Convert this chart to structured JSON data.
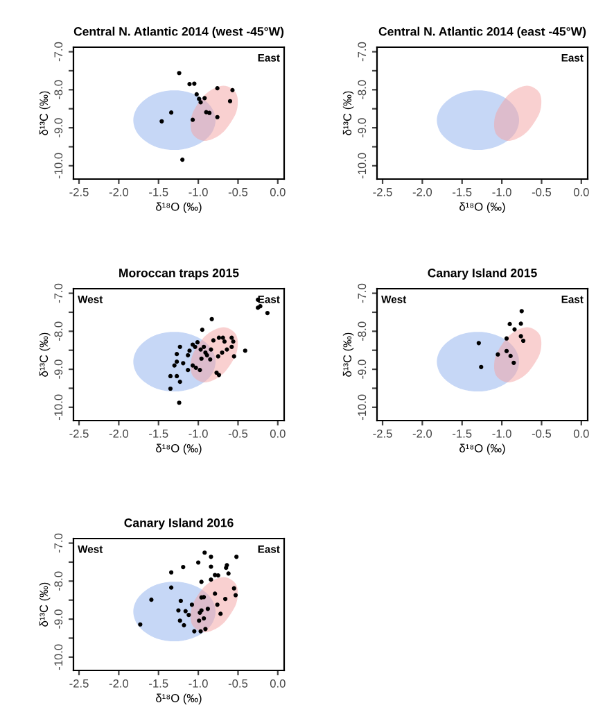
{
  "chart_data": [
    {
      "type": "scatter",
      "title": "Central N. Atlantic 2014 (west -45°W)",
      "xlabel": "δ¹⁸O (‰)",
      "ylabel": "δ¹³C (‰)",
      "xlim": [
        -2.57,
        0.08
      ],
      "ylim": [
        -10.35,
        -6.88
      ],
      "xticks": [
        {
          "value": -2.5,
          "label": "-2.5"
        },
        {
          "value": -2.0,
          "label": "-2.0"
        },
        {
          "value": -1.5,
          "label": "-1.5"
        },
        {
          "value": -1.0,
          "label": "-1.0"
        },
        {
          "value": -0.5,
          "label": "-0.5"
        },
        {
          "value": 0,
          "label": "0.0"
        }
      ],
      "yticks": [
        {
          "value": -10,
          "label": "-10.0"
        },
        {
          "value": -9.5,
          "label": null
        },
        {
          "value": -9,
          "label": "-9.0"
        },
        {
          "value": -8.5,
          "label": null
        },
        {
          "value": -8,
          "label": "-8.0"
        },
        {
          "value": -7.5,
          "label": null
        },
        {
          "value": -7,
          "label": "-7.0"
        }
      ],
      "grid": false,
      "annotations": [
        "East"
      ],
      "series": [
        {
          "type": "area",
          "color": "#8fb0ee",
          "x": [
            -0.79,
            -0.83,
            -0.94,
            -1.11,
            -1.3,
            -1.5,
            -1.66,
            -1.77,
            -1.81,
            -1.77,
            -1.66,
            -1.5,
            -1.3,
            -1.11,
            -0.94,
            -0.83
          ],
          "values": [
            -8.8,
            -8.51,
            -8.26,
            -8.09,
            -8.03,
            -8.09,
            -8.26,
            -8.51,
            -8.8,
            -9.1,
            -9.34,
            -9.51,
            -9.57,
            -9.51,
            -9.34,
            -9.1
          ]
        },
        {
          "type": "area",
          "color": "#f4a3a3",
          "x": [
            -0.51,
            -0.53,
            -0.6,
            -0.69,
            -0.8,
            -0.91,
            -1.0,
            -1.07,
            -1.09,
            -1.07,
            -1.0,
            -0.91,
            -0.8,
            -0.69,
            -0.6,
            -0.53
          ],
          "values": [
            -8.32,
            -8.1,
            -7.96,
            -7.91,
            -7.98,
            -8.14,
            -8.38,
            -8.65,
            -8.92,
            -9.14,
            -9.28,
            -9.33,
            -9.26,
            -9.1,
            -8.86,
            -8.59
          ]
        },
        {
          "marker": "circle",
          "color": "#000000",
          "x": [
            -1.24,
            -1.11,
            -1.05,
            -1.02,
            -0.99,
            -0.92,
            -0.97,
            -0.76,
            -0.57,
            -0.6,
            -0.9,
            -0.86,
            -0.76,
            -1.07,
            -1.34,
            -1.46,
            -1.2
          ],
          "values": [
            -7.56,
            -7.85,
            -7.84,
            -8.12,
            -8.24,
            -8.22,
            -8.33,
            -7.96,
            -8.01,
            -8.3,
            -8.59,
            -8.61,
            -8.72,
            -8.79,
            -8.6,
            -8.83,
            -9.84
          ]
        }
      ]
    },
    {
      "type": "area",
      "title": "Central N. Atlantic 2014 (east -45°W)",
      "xlabel": "δ¹⁸O (‰)",
      "ylabel": "δ¹³C (‰)",
      "xlim": [
        -2.57,
        0.08
      ],
      "ylim": [
        -10.35,
        -6.88
      ],
      "xticks": [
        {
          "value": -2.5,
          "label": "-2.5"
        },
        {
          "value": -2.0,
          "label": "-2.0"
        },
        {
          "value": -1.5,
          "label": "-1.5"
        },
        {
          "value": -1.0,
          "label": "-1.0"
        },
        {
          "value": -0.5,
          "label": "-0.5"
        },
        {
          "value": 0,
          "label": "0.0"
        }
      ],
      "yticks": [
        {
          "value": -10,
          "label": "-10.0"
        },
        {
          "value": -9.5,
          "label": null
        },
        {
          "value": -9,
          "label": "-9.0"
        },
        {
          "value": -8.5,
          "label": null
        },
        {
          "value": -8,
          "label": "-8.0"
        },
        {
          "value": -7.5,
          "label": null
        },
        {
          "value": -7,
          "label": "-7.0"
        }
      ],
      "grid": false,
      "annotations": [
        "East"
      ],
      "series": [
        {
          "color": "#8fb0ee",
          "x": [
            -0.79,
            -0.83,
            -0.94,
            -1.11,
            -1.3,
            -1.5,
            -1.66,
            -1.77,
            -1.81,
            -1.77,
            -1.66,
            -1.5,
            -1.3,
            -1.11,
            -0.94,
            -0.83
          ],
          "values": [
            -8.8,
            -8.51,
            -8.26,
            -8.09,
            -8.03,
            -8.09,
            -8.26,
            -8.51,
            -8.8,
            -9.1,
            -9.34,
            -9.51,
            -9.57,
            -9.51,
            -9.34,
            -9.1
          ]
        },
        {
          "color": "#f4a3a3",
          "x": [
            -0.51,
            -0.53,
            -0.6,
            -0.69,
            -0.8,
            -0.91,
            -1.0,
            -1.07,
            -1.09,
            -1.07,
            -1.0,
            -0.91,
            -0.8,
            -0.69,
            -0.6,
            -0.53
          ],
          "values": [
            -8.32,
            -8.1,
            -7.96,
            -7.91,
            -7.98,
            -8.14,
            -8.38,
            -8.65,
            -8.92,
            -9.14,
            -9.28,
            -9.33,
            -9.26,
            -9.1,
            -8.86,
            -8.59
          ]
        }
      ]
    },
    {
      "type": "scatter",
      "title": "Moroccan traps 2015",
      "xlabel": "δ¹⁸O (‰)",
      "ylabel": "δ¹³C (‰)",
      "xlim": [
        -2.57,
        0.08
      ],
      "ylim": [
        -10.35,
        -6.88
      ],
      "xticks": [
        {
          "value": -2.5,
          "label": "-2.5"
        },
        {
          "value": -2.0,
          "label": "-2.0"
        },
        {
          "value": -1.5,
          "label": "-1.5"
        },
        {
          "value": -1.0,
          "label": "-1.0"
        },
        {
          "value": -0.5,
          "label": "-0.5"
        },
        {
          "value": 0,
          "label": "0.0"
        }
      ],
      "yticks": [
        {
          "value": -10,
          "label": "-10.0"
        },
        {
          "value": -9.5,
          "label": null
        },
        {
          "value": -9,
          "label": "-9.0"
        },
        {
          "value": -8.5,
          "label": null
        },
        {
          "value": -8,
          "label": "-8.0"
        },
        {
          "value": -7.5,
          "label": null
        },
        {
          "value": -7,
          "label": "-7.0"
        }
      ],
      "grid": false,
      "annotations": [
        "West",
        "East"
      ],
      "series": [
        {
          "type": "area",
          "color": "#8fb0ee",
          "x": [
            -0.79,
            -0.83,
            -0.94,
            -1.11,
            -1.3,
            -1.5,
            -1.66,
            -1.77,
            -1.81,
            -1.77,
            -1.66,
            -1.5,
            -1.3,
            -1.11,
            -0.94,
            -0.83
          ],
          "values": [
            -8.8,
            -8.51,
            -8.26,
            -8.09,
            -8.03,
            -8.09,
            -8.26,
            -8.51,
            -8.8,
            -9.1,
            -9.34,
            -9.51,
            -9.57,
            -9.51,
            -9.34,
            -9.1
          ]
        },
        {
          "type": "area",
          "color": "#f4a3a3",
          "x": [
            -0.51,
            -0.53,
            -0.6,
            -0.69,
            -0.8,
            -0.91,
            -1.0,
            -1.07,
            -1.09,
            -1.07,
            -1.0,
            -0.91,
            -0.8,
            -0.69,
            -0.6,
            -0.53
          ],
          "values": [
            -8.32,
            -8.1,
            -7.96,
            -7.91,
            -7.98,
            -8.14,
            -8.38,
            -8.65,
            -8.92,
            -9.14,
            -9.28,
            -9.33,
            -9.26,
            -9.1,
            -8.86,
            -8.59
          ]
        },
        {
          "marker": "circle",
          "color": "#000000",
          "x": [
            -0.25,
            -0.22,
            -0.25,
            -0.13,
            -0.83,
            -0.95,
            -0.41,
            -0.69,
            -0.74,
            -0.58,
            -0.67,
            -0.56,
            -0.81,
            -0.84,
            -0.7,
            -0.64,
            -0.55,
            -0.75,
            -0.58,
            -0.74,
            -0.77,
            -1.01,
            -1.07,
            -1.04,
            -0.97,
            -0.91,
            -0.89,
            -0.96,
            -0.93,
            -0.85,
            -1.13,
            -1.11,
            -1.23,
            -1.27,
            -1.19,
            -1.07,
            -1.03,
            -0.98,
            -1.27,
            -1.3,
            -1.35,
            -1.27,
            -1.23,
            -1.35,
            -1.24,
            -1.13
          ],
          "values": [
            -7.17,
            -7.34,
            -7.38,
            -7.52,
            -7.68,
            -7.96,
            -8.51,
            -8.17,
            -8.17,
            -8.17,
            -8.27,
            -8.27,
            -8.24,
            -8.48,
            -8.56,
            -8.48,
            -8.66,
            -8.66,
            -8.41,
            -9.15,
            -9.09,
            -8.29,
            -8.35,
            -8.41,
            -8.48,
            -8.56,
            -8.63,
            -8.72,
            -8.41,
            -8.74,
            -8.63,
            -8.51,
            -8.41,
            -8.6,
            -8.84,
            -8.9,
            -8.96,
            -9.02,
            -8.8,
            -8.9,
            -9.18,
            -9.18,
            -9.33,
            -9.51,
            -9.88,
            -9.02
          ]
        }
      ]
    },
    {
      "type": "scatter",
      "title": "Canary Island 2015",
      "xlabel": "δ¹⁸O (‰)",
      "ylabel": "δ¹³C (‰)",
      "xlim": [
        -2.57,
        0.08
      ],
      "ylim": [
        -10.35,
        -6.88
      ],
      "xticks": [
        {
          "value": -2.5,
          "label": "-2.5"
        },
        {
          "value": -2.0,
          "label": "-2.0"
        },
        {
          "value": -1.5,
          "label": "-1.5"
        },
        {
          "value": -1.0,
          "label": "-1.0"
        },
        {
          "value": -0.5,
          "label": "-0.5"
        },
        {
          "value": 0,
          "label": "0.0"
        }
      ],
      "yticks": [
        {
          "value": -10,
          "label": "-10.0"
        },
        {
          "value": -9.5,
          "label": null
        },
        {
          "value": -9,
          "label": "-9.0"
        },
        {
          "value": -8.5,
          "label": null
        },
        {
          "value": -8,
          "label": "-8.0"
        },
        {
          "value": -7.5,
          "label": null
        },
        {
          "value": -7,
          "label": "-7.0"
        }
      ],
      "grid": false,
      "annotations": [
        "West",
        "East"
      ],
      "series": [
        {
          "type": "area",
          "color": "#8fb0ee",
          "x": [
            -0.79,
            -0.83,
            -0.94,
            -1.11,
            -1.3,
            -1.5,
            -1.66,
            -1.77,
            -1.81,
            -1.77,
            -1.66,
            -1.5,
            -1.3,
            -1.11,
            -0.94,
            -0.83
          ],
          "values": [
            -8.8,
            -8.51,
            -8.26,
            -8.09,
            -8.03,
            -8.09,
            -8.26,
            -8.51,
            -8.8,
            -9.1,
            -9.34,
            -9.51,
            -9.57,
            -9.51,
            -9.34,
            -9.1
          ]
        },
        {
          "type": "area",
          "color": "#f4a3a3",
          "x": [
            -0.51,
            -0.53,
            -0.6,
            -0.69,
            -0.8,
            -0.91,
            -1.0,
            -1.07,
            -1.09,
            -1.07,
            -1.0,
            -0.91,
            -0.8,
            -0.69,
            -0.6,
            -0.53
          ],
          "values": [
            -8.32,
            -8.1,
            -7.96,
            -7.91,
            -7.98,
            -8.14,
            -8.38,
            -8.65,
            -8.92,
            -9.14,
            -9.28,
            -9.33,
            -9.26,
            -9.1,
            -8.86,
            -8.59
          ]
        },
        {
          "marker": "circle",
          "color": "#000000",
          "x": [
            -0.75,
            -0.9,
            -0.76,
            -0.84,
            -0.94,
            -0.76,
            -0.73,
            -1.29,
            -1.05,
            -0.94,
            -0.89,
            -0.85,
            -1.26
          ],
          "values": [
            -7.47,
            -7.81,
            -7.8,
            -7.95,
            -8.19,
            -8.13,
            -8.25,
            -8.31,
            -8.61,
            -8.52,
            -8.65,
            -8.83,
            -8.94
          ]
        }
      ]
    },
    {
      "type": "scatter",
      "title": "Canary Island 2016",
      "xlabel": "δ¹⁸O (‰)",
      "ylabel": "δ¹³C (‰)",
      "xlim": [
        -2.57,
        0.08
      ],
      "ylim": [
        -10.35,
        -6.88
      ],
      "xticks": [
        {
          "value": -2.5,
          "label": "-2.5"
        },
        {
          "value": -2.0,
          "label": "-2.0"
        },
        {
          "value": -1.5,
          "label": "-1.5"
        },
        {
          "value": -1.0,
          "label": "-1.0"
        },
        {
          "value": -0.5,
          "label": "-0.5"
        },
        {
          "value": 0,
          "label": "0.0"
        }
      ],
      "yticks": [
        {
          "value": -10,
          "label": "-10.0"
        },
        {
          "value": -9.5,
          "label": null
        },
        {
          "value": -9,
          "label": "-9.0"
        },
        {
          "value": -8.5,
          "label": null
        },
        {
          "value": -8,
          "label": "-8.0"
        },
        {
          "value": -7.5,
          "label": null
        },
        {
          "value": -7,
          "label": "-7.0"
        }
      ],
      "grid": false,
      "annotations": [
        "West",
        "East"
      ],
      "series": [
        {
          "type": "area",
          "color": "#8fb0ee",
          "x": [
            -0.79,
            -0.83,
            -0.94,
            -1.11,
            -1.3,
            -1.5,
            -1.66,
            -1.77,
            -1.81,
            -1.77,
            -1.66,
            -1.5,
            -1.3,
            -1.11,
            -0.94,
            -0.83
          ],
          "values": [
            -8.8,
            -8.51,
            -8.26,
            -8.09,
            -8.03,
            -8.09,
            -8.26,
            -8.51,
            -8.8,
            -9.1,
            -9.34,
            -9.51,
            -9.57,
            -9.51,
            -9.34,
            -9.1
          ]
        },
        {
          "type": "area",
          "color": "#f4a3a3",
          "x": [
            -0.51,
            -0.53,
            -0.6,
            -0.69,
            -0.8,
            -0.91,
            -1.0,
            -1.07,
            -1.09,
            -1.07,
            -1.0,
            -0.91,
            -0.8,
            -0.69,
            -0.6,
            -0.53
          ],
          "values": [
            -8.32,
            -8.1,
            -7.96,
            -7.91,
            -7.98,
            -8.14,
            -8.38,
            -8.65,
            -8.92,
            -9.14,
            -9.28,
            -9.33,
            -9.26,
            -9.1,
            -8.86,
            -8.59
          ]
        },
        {
          "marker": "circle",
          "color": "#000000",
          "x": [
            -0.92,
            -0.84,
            -0.52,
            -1.0,
            -1.19,
            -1.34,
            -0.84,
            -0.64,
            -0.65,
            -0.79,
            -0.75,
            -0.96,
            -0.84,
            -0.62,
            -1.34,
            -0.55,
            -0.53,
            -0.66,
            -0.79,
            -0.96,
            -0.93,
            -1.22,
            -1.59,
            -1.08,
            -0.88,
            -1.16,
            -1.25,
            -0.98,
            -0.76,
            -0.72,
            -1.12,
            -1.23,
            -0.99,
            -0.93,
            -0.91,
            -0.97,
            -1.05,
            -1.18,
            -1.73,
            -0.96
          ],
          "values": [
            -7.25,
            -7.36,
            -7.36,
            -7.51,
            -7.63,
            -7.77,
            -7.62,
            -7.58,
            -7.65,
            -7.84,
            -7.85,
            -8.02,
            -7.96,
            -7.8,
            -8.17,
            -8.19,
            -8.37,
            -8.47,
            -8.33,
            -8.43,
            -8.42,
            -8.52,
            -8.49,
            -8.62,
            -8.73,
            -8.79,
            -8.77,
            -8.83,
            -8.62,
            -8.86,
            -8.89,
            -9.04,
            -9.04,
            -8.98,
            -9.26,
            -9.32,
            -9.32,
            -9.16,
            -9.14,
            -8.77
          ]
        }
      ]
    }
  ]
}
